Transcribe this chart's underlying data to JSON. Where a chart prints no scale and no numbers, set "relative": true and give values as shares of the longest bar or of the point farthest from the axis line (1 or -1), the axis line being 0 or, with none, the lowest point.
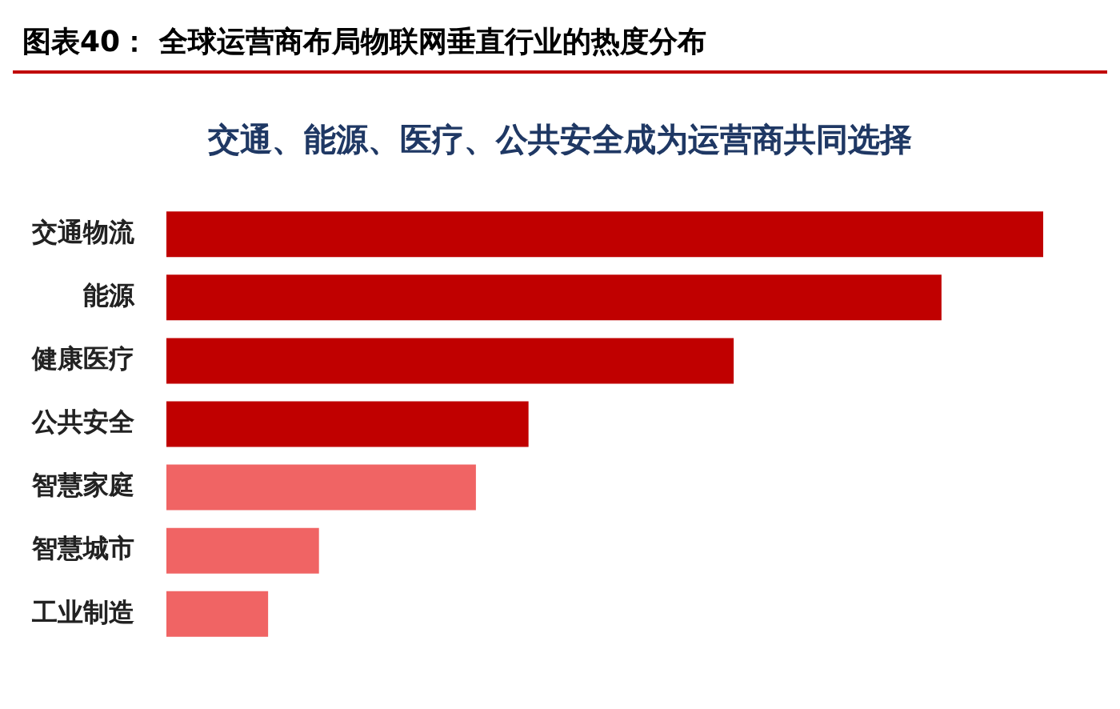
{
  "chart_data": {
    "type": "bar",
    "orientation": "horizontal",
    "relative": true,
    "title": "图表40：  全球运营商布局物联网垂直行业的热度分布",
    "subtitle": "交通、能源、医疗、公共安全成为运营商共同选择",
    "categories": [
      "交通物流",
      "能源",
      "健康医疗",
      "公共安全",
      "智慧家庭",
      "智慧城市",
      "工业制造"
    ],
    "values": [
      1,
      0.884,
      0.647,
      0.413,
      0.353,
      0.174,
      0.116
    ],
    "colors": [
      "#c00000",
      "#c00000",
      "#c00000",
      "#c00000",
      "#f06464",
      "#f06464",
      "#f06464"
    ]
  }
}
